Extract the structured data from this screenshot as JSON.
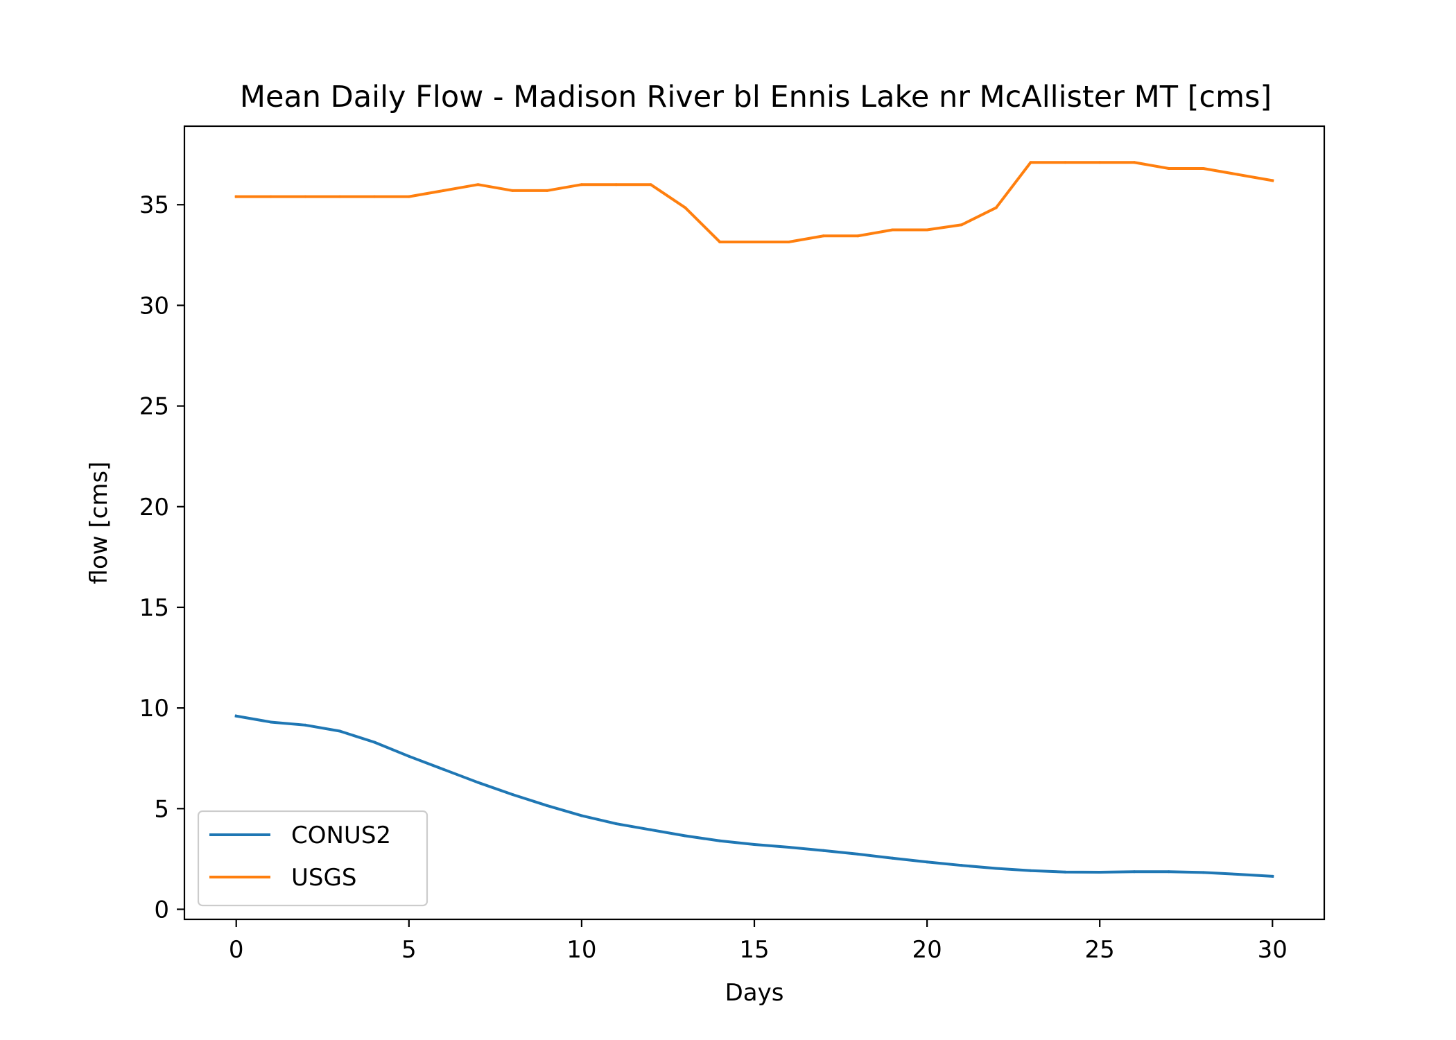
{
  "chart_data": {
    "type": "line",
    "title": "Mean Daily Flow - Madison River bl Ennis Lake nr McAllister MT [cms]",
    "xlabel": "Days",
    "ylabel": "flow [cms]",
    "xlim": [
      -1.5,
      31.5
    ],
    "ylim": [
      -0.5,
      38.9
    ],
    "xticks": [
      0,
      5,
      10,
      15,
      20,
      25,
      30
    ],
    "yticks": [
      0,
      5,
      10,
      15,
      20,
      25,
      30,
      35
    ],
    "grid": false,
    "legend_position": "lower-left",
    "x": [
      0,
      1,
      2,
      3,
      4,
      5,
      6,
      7,
      8,
      9,
      10,
      11,
      12,
      13,
      14,
      15,
      16,
      17,
      18,
      19,
      20,
      21,
      22,
      23,
      24,
      25,
      26,
      27,
      28,
      29,
      30
    ],
    "series": [
      {
        "name": "CONUS2",
        "color": "#1f77b4",
        "values": [
          9.6,
          9.3,
          9.15,
          8.85,
          8.3,
          7.6,
          6.95,
          6.3,
          5.7,
          5.15,
          4.65,
          4.25,
          3.95,
          3.65,
          3.4,
          3.22,
          3.08,
          2.92,
          2.74,
          2.54,
          2.35,
          2.18,
          2.03,
          1.92,
          1.85,
          1.84,
          1.87,
          1.87,
          1.83,
          1.74,
          1.64
        ]
      },
      {
        "name": "USGS",
        "color": "#ff7f0e",
        "values": [
          35.4,
          35.4,
          35.4,
          35.4,
          35.4,
          35.4,
          35.7,
          36.0,
          35.7,
          35.7,
          36.0,
          36.0,
          36.0,
          34.85,
          33.15,
          33.15,
          33.15,
          33.45,
          33.45,
          33.75,
          33.75,
          34.0,
          34.85,
          37.1,
          37.1,
          37.1,
          37.1,
          36.8,
          36.8,
          36.5,
          36.2
        ]
      }
    ]
  }
}
